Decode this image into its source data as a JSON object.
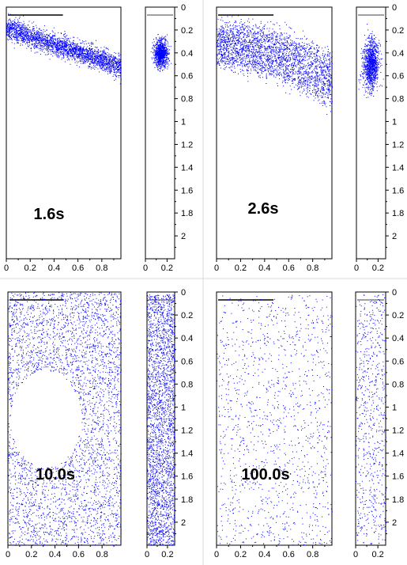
{
  "chart_data": [
    {
      "type": "scatter",
      "time_label": "1.6s",
      "color": "#0000ff",
      "main_panel": {
        "xlim": [
          0,
          0.96
        ],
        "ylim": [
          0,
          2.2
        ],
        "y_inverted": true,
        "x_ticks": [
          "0",
          "0.2",
          "0.4",
          "0.6",
          "0.8"
        ],
        "y_ticks": [
          "0",
          "0.2",
          "0.4",
          "0.6",
          "0.8",
          "1",
          "1.2",
          "1.4",
          "1.6",
          "1.8",
          "2"
        ],
        "distribution": "band",
        "band": {
          "x": [
            0,
            0.96
          ],
          "y_start": 0.18,
          "y_end": 0.52,
          "half_width": 0.08
        },
        "point_count": 2600
      },
      "side_panel": {
        "xlim": [
          0,
          0.27
        ],
        "ylim": [
          0,
          2.2
        ],
        "y_inverted": true,
        "x_ticks": [
          "0",
          "0.2"
        ],
        "distribution": "cloud",
        "cloud": {
          "x_center": 0.14,
          "y_center": 0.4,
          "x_spread": 0.06,
          "y_spread": 0.12,
          "y_min": 0.15,
          "y_max": 0.6
        },
        "point_count": 1000
      }
    },
    {
      "type": "scatter",
      "time_label": "2.6s",
      "color": "#0000ff",
      "main_panel": {
        "xlim": [
          0,
          0.96
        ],
        "ylim": [
          0,
          2.2
        ],
        "y_inverted": true,
        "x_ticks": [
          "0",
          "0.2",
          "0.4",
          "0.6",
          "0.8"
        ],
        "y_ticks": [
          "0",
          "0.2",
          "0.4",
          "0.6",
          "0.8",
          "1",
          "1.2",
          "1.4",
          "1.6",
          "1.8",
          "2"
        ],
        "distribution": "arch",
        "arch": {
          "x": [
            0,
            0.96
          ],
          "top": [
            0.12,
            0.06,
            0.35
          ],
          "bottom": [
            0.55,
            0.6,
            0.95
          ]
        },
        "point_count": 2800
      },
      "side_panel": {
        "xlim": [
          0,
          0.27
        ],
        "ylim": [
          0,
          2.2
        ],
        "y_inverted": true,
        "x_ticks": [
          "0",
          "0.2"
        ],
        "distribution": "cloud",
        "cloud": {
          "x_center": 0.13,
          "y_center": 0.5,
          "x_spread": 0.07,
          "y_spread": 0.22,
          "y_min": 0.1,
          "y_max": 0.95
        },
        "point_count": 1100
      }
    },
    {
      "type": "scatter",
      "time_label": "10.0s",
      "color": "#0000ff",
      "main_panel": {
        "xlim": [
          0,
          0.96
        ],
        "ylim": [
          0,
          2.2
        ],
        "y_inverted": true,
        "x_ticks": [
          "0",
          "0.2",
          "0.4",
          "0.6",
          "0.8"
        ],
        "y_ticks": [
          "0",
          "0.2",
          "0.4",
          "0.6",
          "0.8",
          "1",
          "1.2",
          "1.4",
          "1.6",
          "1.8",
          "2"
        ],
        "distribution": "spread_with_gap",
        "gap": {
          "x_center": 0.32,
          "y_center": 1.1,
          "x_radius": 0.3,
          "y_radius": 0.42
        },
        "point_count": 3500
      },
      "side_panel": {
        "xlim": [
          0,
          0.27
        ],
        "ylim": [
          0,
          2.2
        ],
        "y_inverted": true,
        "x_ticks": [
          "0",
          "0.2"
        ],
        "distribution": "uniform_dense",
        "point_count": 2600
      }
    },
    {
      "type": "scatter",
      "time_label": "100.0s",
      "color": "#0000ff",
      "main_panel": {
        "xlim": [
          0,
          0.96
        ],
        "ylim": [
          0,
          2.2
        ],
        "y_inverted": true,
        "x_ticks": [
          "0",
          "0.2",
          "0.4",
          "0.6",
          "0.8"
        ],
        "y_ticks": [
          "0",
          "0.2",
          "0.4",
          "0.6",
          "0.8",
          "1",
          "1.2",
          "1.4",
          "1.6",
          "1.8",
          "2"
        ],
        "distribution": "uniform",
        "point_count": 1300
      },
      "side_panel": {
        "xlim": [
          0,
          0.27
        ],
        "ylim": [
          0,
          2.2
        ],
        "y_inverted": true,
        "x_ticks": [
          "0",
          "0.2"
        ],
        "distribution": "uniform",
        "point_count": 700
      }
    }
  ]
}
